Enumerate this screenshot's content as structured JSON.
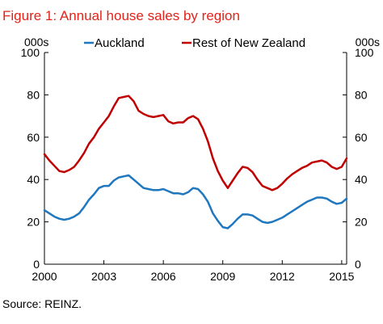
{
  "chart_data": {
    "type": "line",
    "title": "Figure 1: Annual house sales by region",
    "left_unit": "000s",
    "right_unit": "000s",
    "source": "Source: REINZ.",
    "ylim": [
      0,
      100
    ],
    "y_ticks": [
      0,
      20,
      40,
      60,
      80,
      100
    ],
    "y_tick_labels": [
      "0",
      "20",
      "40",
      "60",
      "80",
      "100"
    ],
    "right_y_ticks": [
      0,
      20,
      40,
      60,
      80,
      100
    ],
    "right_y_tick_labels": [
      "0",
      "20",
      "40",
      "60",
      "80",
      "100"
    ],
    "xlim": [
      2000,
      2015.25
    ],
    "x_ticks": [
      2000,
      2003,
      2006,
      2009,
      2012,
      2015
    ],
    "x_tick_labels": [
      "2000",
      "2003",
      "2006",
      "2009",
      "2012",
      "2015"
    ],
    "grid": false,
    "legend_position": "top",
    "colors": {
      "auckland": "#1f77bf",
      "rest": "#c00000",
      "title": "#e2231a"
    },
    "series": [
      {
        "name": "Auckland",
        "color": "#1f77bf",
        "points": [
          [
            2000.0,
            25.5
          ],
          [
            2000.25,
            24.0
          ],
          [
            2000.5,
            22.5
          ],
          [
            2000.75,
            21.5
          ],
          [
            2001.0,
            21.0
          ],
          [
            2001.25,
            21.5
          ],
          [
            2001.5,
            22.5
          ],
          [
            2001.75,
            24.0
          ],
          [
            2002.0,
            27.0
          ],
          [
            2002.25,
            30.5
          ],
          [
            2002.5,
            33.0
          ],
          [
            2002.75,
            36.0
          ],
          [
            2003.0,
            37.0
          ],
          [
            2003.25,
            37.0
          ],
          [
            2003.5,
            39.5
          ],
          [
            2003.75,
            41.0
          ],
          [
            2004.0,
            41.5
          ],
          [
            2004.25,
            42.0
          ],
          [
            2004.5,
            40.0
          ],
          [
            2004.75,
            38.0
          ],
          [
            2005.0,
            36.0
          ],
          [
            2005.25,
            35.5
          ],
          [
            2005.5,
            35.0
          ],
          [
            2005.75,
            35.0
          ],
          [
            2006.0,
            35.5
          ],
          [
            2006.25,
            34.5
          ],
          [
            2006.5,
            33.5
          ],
          [
            2006.75,
            33.5
          ],
          [
            2007.0,
            33.0
          ],
          [
            2007.25,
            34.0
          ],
          [
            2007.5,
            36.0
          ],
          [
            2007.75,
            35.5
          ],
          [
            2008.0,
            33.0
          ],
          [
            2008.25,
            29.5
          ],
          [
            2008.5,
            24.0
          ],
          [
            2008.75,
            20.5
          ],
          [
            2009.0,
            17.5
          ],
          [
            2009.25,
            17.0
          ],
          [
            2009.5,
            19.0
          ],
          [
            2009.75,
            21.5
          ],
          [
            2010.0,
            23.5
          ],
          [
            2010.25,
            23.5
          ],
          [
            2010.5,
            23.0
          ],
          [
            2010.75,
            21.5
          ],
          [
            2011.0,
            20.0
          ],
          [
            2011.25,
            19.5
          ],
          [
            2011.5,
            20.0
          ],
          [
            2011.75,
            21.0
          ],
          [
            2012.0,
            22.0
          ],
          [
            2012.25,
            23.5
          ],
          [
            2012.5,
            25.0
          ],
          [
            2012.75,
            26.5
          ],
          [
            2013.0,
            28.0
          ],
          [
            2013.25,
            29.5
          ],
          [
            2013.5,
            30.5
          ],
          [
            2013.75,
            31.5
          ],
          [
            2014.0,
            31.5
          ],
          [
            2014.25,
            31.0
          ],
          [
            2014.5,
            29.5
          ],
          [
            2014.75,
            28.5
          ],
          [
            2015.0,
            29.0
          ],
          [
            2015.25,
            31.0
          ]
        ]
      },
      {
        "name": "Rest of New Zealand",
        "color": "#c00000",
        "points": [
          [
            2000.0,
            52.0
          ],
          [
            2000.25,
            49.0
          ],
          [
            2000.5,
            46.5
          ],
          [
            2000.75,
            44.0
          ],
          [
            2001.0,
            43.5
          ],
          [
            2001.25,
            44.5
          ],
          [
            2001.5,
            46.0
          ],
          [
            2001.75,
            49.0
          ],
          [
            2002.0,
            52.5
          ],
          [
            2002.25,
            57.0
          ],
          [
            2002.5,
            60.0
          ],
          [
            2002.75,
            64.0
          ],
          [
            2003.0,
            67.0
          ],
          [
            2003.25,
            70.0
          ],
          [
            2003.5,
            74.5
          ],
          [
            2003.75,
            78.5
          ],
          [
            2004.0,
            79.0
          ],
          [
            2004.25,
            79.5
          ],
          [
            2004.5,
            77.0
          ],
          [
            2004.75,
            72.5
          ],
          [
            2005.0,
            71.0
          ],
          [
            2005.25,
            70.0
          ],
          [
            2005.5,
            69.5
          ],
          [
            2005.75,
            70.0
          ],
          [
            2006.0,
            70.5
          ],
          [
            2006.25,
            67.5
          ],
          [
            2006.5,
            66.5
          ],
          [
            2006.75,
            67.0
          ],
          [
            2007.0,
            67.0
          ],
          [
            2007.25,
            69.0
          ],
          [
            2007.5,
            70.0
          ],
          [
            2007.75,
            68.5
          ],
          [
            2008.0,
            64.0
          ],
          [
            2008.25,
            58.0
          ],
          [
            2008.5,
            50.0
          ],
          [
            2008.75,
            44.0
          ],
          [
            2009.0,
            39.5
          ],
          [
            2009.25,
            36.0
          ],
          [
            2009.5,
            39.5
          ],
          [
            2009.75,
            43.0
          ],
          [
            2010.0,
            46.0
          ],
          [
            2010.25,
            45.5
          ],
          [
            2010.5,
            43.5
          ],
          [
            2010.75,
            40.0
          ],
          [
            2011.0,
            37.0
          ],
          [
            2011.25,
            36.0
          ],
          [
            2011.5,
            35.0
          ],
          [
            2011.75,
            36.0
          ],
          [
            2012.0,
            38.0
          ],
          [
            2012.25,
            40.5
          ],
          [
            2012.5,
            42.5
          ],
          [
            2012.75,
            44.0
          ],
          [
            2013.0,
            45.5
          ],
          [
            2013.25,
            46.5
          ],
          [
            2013.5,
            48.0
          ],
          [
            2013.75,
            48.5
          ],
          [
            2014.0,
            49.0
          ],
          [
            2014.25,
            48.0
          ],
          [
            2014.5,
            46.0
          ],
          [
            2014.75,
            45.0
          ],
          [
            2015.0,
            46.0
          ],
          [
            2015.25,
            50.0
          ]
        ]
      }
    ]
  }
}
